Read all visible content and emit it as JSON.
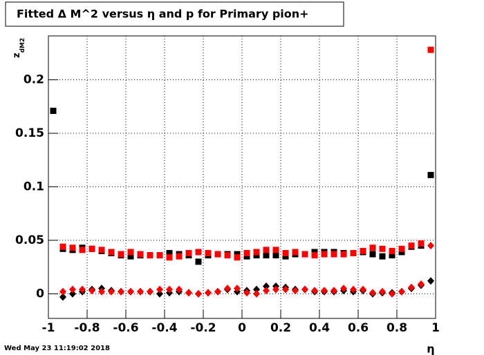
{
  "chart_data": {
    "type": "scatter",
    "title": "Fitted Δ M^2 versus η and p for Primary pion+",
    "ylabel": "z",
    "ylabel_sub": "dM2",
    "xlabel": "η",
    "footer": "Wed May 23 11:19:02 2018",
    "x": [
      -0.975,
      -0.925,
      -0.875,
      -0.825,
      -0.775,
      -0.725,
      -0.675,
      -0.625,
      -0.575,
      -0.525,
      -0.475,
      -0.425,
      -0.375,
      -0.325,
      -0.275,
      -0.225,
      -0.175,
      -0.125,
      -0.075,
      -0.025,
      0.025,
      0.075,
      0.125,
      0.175,
      0.225,
      0.275,
      0.325,
      0.375,
      0.425,
      0.475,
      0.525,
      0.575,
      0.625,
      0.675,
      0.725,
      0.775,
      0.825,
      0.875,
      0.925,
      0.975
    ],
    "series": [
      {
        "color": "#000000",
        "marker": "square",
        "values": [
          0.171,
          0.042,
          0.041,
          0.043,
          0.042,
          0.04,
          0.038,
          0.036,
          0.035,
          0.036,
          0.036,
          0.036,
          0.038,
          0.037,
          0.036,
          0.03,
          0.036,
          0.037,
          0.037,
          0.037,
          0.035,
          0.036,
          0.036,
          0.036,
          0.035,
          0.037,
          0.037,
          0.039,
          0.039,
          0.039,
          0.038,
          0.038,
          0.039,
          0.037,
          0.035,
          0.036,
          0.039,
          0.044,
          0.045,
          0.111
        ]
      },
      {
        "color": "#ff0000",
        "marker": "square",
        "values": [
          null,
          0.044,
          0.043,
          0.041,
          0.042,
          0.041,
          0.039,
          0.037,
          0.039,
          0.037,
          0.036,
          0.036,
          0.034,
          0.035,
          0.038,
          0.039,
          0.038,
          0.037,
          0.036,
          0.034,
          0.038,
          0.039,
          0.041,
          0.041,
          0.038,
          0.039,
          0.037,
          0.036,
          0.037,
          0.037,
          0.037,
          0.038,
          0.04,
          0.043,
          0.042,
          0.04,
          0.042,
          0.045,
          0.047,
          0.228
        ]
      },
      {
        "color": "#000000",
        "marker": "diamond",
        "values": [
          null,
          -0.003,
          0.0,
          0.002,
          0.004,
          0.005,
          0.003,
          0.002,
          0.002,
          0.002,
          0.002,
          0.0,
          0.001,
          0.002,
          0.001,
          0.0,
          0.001,
          0.002,
          0.004,
          0.002,
          0.003,
          0.004,
          0.007,
          0.007,
          0.006,
          0.004,
          0.004,
          0.002,
          0.002,
          0.002,
          0.003,
          0.002,
          0.003,
          0.0,
          0.001,
          0.001,
          0.002,
          0.005,
          0.008,
          0.012
        ]
      },
      {
        "color": "#ff0000",
        "marker": "diamond",
        "values": [
          null,
          0.002,
          0.004,
          0.004,
          0.003,
          0.002,
          0.002,
          0.002,
          0.002,
          0.002,
          0.002,
          0.004,
          0.004,
          0.004,
          0.001,
          0.0,
          0.001,
          0.002,
          0.005,
          0.005,
          0.001,
          0.0,
          0.003,
          0.004,
          0.004,
          0.003,
          0.004,
          0.003,
          0.003,
          0.003,
          0.005,
          0.004,
          0.004,
          0.001,
          0.002,
          0.0,
          0.002,
          0.006,
          0.009,
          0.045
        ]
      }
    ],
    "xlim": [
      -1,
      1
    ],
    "xticks": [
      -1,
      -0.8,
      -0.6,
      -0.4,
      -0.2,
      0,
      0.2,
      0.4,
      0.6,
      0.8,
      1
    ],
    "ylim": [
      -0.023,
      0.241
    ],
    "yticks": [
      0,
      0.05,
      0.1,
      0.15,
      0.2
    ],
    "grid": true
  }
}
